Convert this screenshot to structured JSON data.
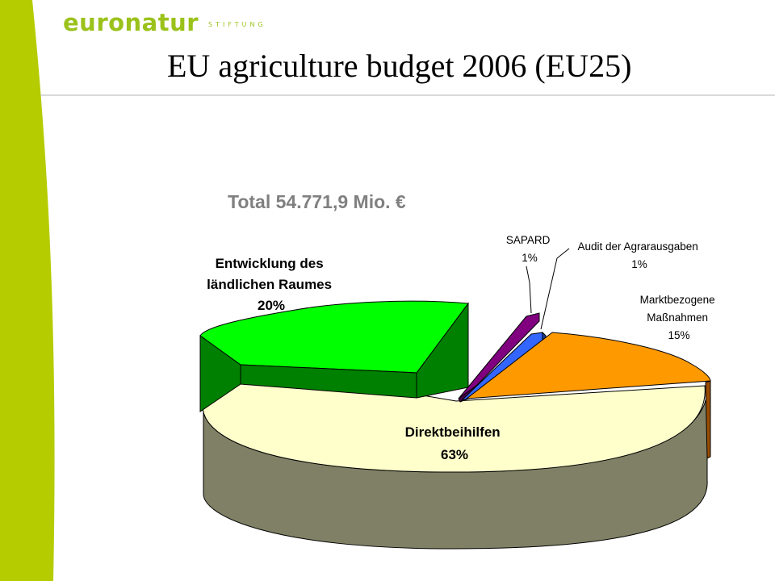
{
  "brand": {
    "name": "euronatur",
    "sub": "STIFTUNG",
    "color": "#9bc21b"
  },
  "title": "EU agriculture budget 2006 (EU25)",
  "total": "Total 54.771,9 Mio. €",
  "chart_data": {
    "type": "pie",
    "title": "EU agriculture budget 2006 (EU25)",
    "subtitle": "Total 54.771,9 Mio. €",
    "three_d": true,
    "slices": [
      {
        "label": "Direktbeihilfen",
        "percent_label": "63%",
        "value": 63,
        "color": "#ffffcc",
        "exploded": false
      },
      {
        "label": "Entwicklung des ländlichen Raumes",
        "percent_label": "20%",
        "value": 20,
        "color": "#00ff00",
        "exploded": true
      },
      {
        "label": "SAPARD",
        "percent_label": "1%",
        "value": 1,
        "color": "#800080",
        "exploded": true
      },
      {
        "label": "Audit der Agrarausgaben",
        "percent_label": "1%",
        "value": 1,
        "color": "#3366ff",
        "exploded": true
      },
      {
        "label": "Marktbezogene Maßnahmen",
        "percent_label": "15%",
        "value": 15,
        "color": "#ff9900",
        "exploded": true
      }
    ],
    "label_lines": {
      "rural": [
        "Entwicklung des",
        "ländlichen Raumes",
        "20%"
      ],
      "sapard": [
        "SAPARD",
        "1%"
      ],
      "audit": [
        "Audit der Agrarausgaben",
        "1%"
      ],
      "market": [
        "Marktbezogene",
        "Maßnahmen",
        "15%"
      ],
      "direct": [
        "Direktbeihilfen",
        "63%"
      ]
    }
  }
}
